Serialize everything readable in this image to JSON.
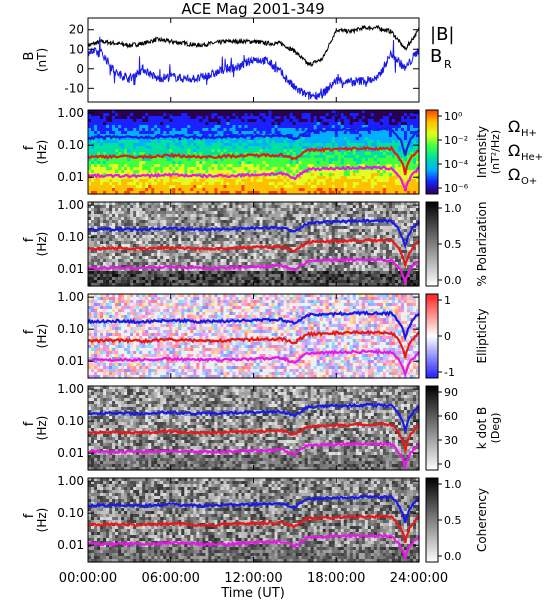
{
  "chart_data": [
    {
      "type": "line",
      "title": "ACE Mag 2001-349",
      "ylabel": "B",
      "yunit": "(nT)",
      "ylim": [
        -17,
        26
      ],
      "yticks": [
        "20",
        "10",
        "0",
        "-10"
      ],
      "legend": [
        {
          "label": "|B|",
          "color": "#000000"
        },
        {
          "label": "B",
          "sub": "R",
          "color": "#1a1ae6"
        }
      ],
      "x": [
        "00:00",
        "01:00",
        "02:00",
        "03:00",
        "04:00",
        "05:00",
        "06:00",
        "07:00",
        "08:00",
        "09:00",
        "10:00",
        "11:00",
        "12:00",
        "13:00",
        "14:00",
        "15:00",
        "16:00",
        "17:00",
        "18:00",
        "19:00",
        "20:00",
        "21:00",
        "22:00",
        "23:00",
        "24:00"
      ],
      "series": [
        {
          "name": "|B|",
          "values": [
            12,
            14,
            13,
            12,
            13,
            15,
            14,
            13,
            12,
            13,
            14,
            14,
            14,
            13,
            13,
            9,
            2,
            5,
            20,
            19,
            21,
            21,
            19,
            10,
            20
          ]
        },
        {
          "name": "B_R",
          "values": [
            9,
            8,
            -2,
            -5,
            0,
            -5,
            -4,
            -5,
            -5,
            -3,
            0,
            1,
            5,
            4,
            -2,
            -10,
            -14,
            -13,
            -6,
            -7,
            -6,
            -5,
            8,
            0,
            10
          ]
        }
      ]
    },
    {
      "type": "heatmap",
      "ylabel": "f",
      "yunit": "(Hz)",
      "yscale": "log",
      "yticks": [
        "1.00",
        "0.10",
        "0.01"
      ],
      "colorbar": {
        "label": "Intensity",
        "unit": "(nT²/Hz)",
        "ticks": [
          "10⁰",
          "10⁻²",
          "10⁻⁴",
          "10⁻⁶"
        ],
        "colors": [
          "#2a0050",
          "#1a20ff",
          "#00b0ff",
          "#00e0a0",
          "#40ff40",
          "#e0ff20",
          "#ffc000",
          "#ff4000",
          "#ffffff"
        ]
      },
      "lines_legend": [
        {
          "label": "Ω",
          "sub": "H+",
          "color": "#1a1ae6"
        },
        {
          "label": "Ω",
          "sub": "He+",
          "color": "#e61a1a"
        },
        {
          "label": "Ω",
          "sub": "O+",
          "color": "#e61ae6"
        }
      ]
    },
    {
      "type": "heatmap",
      "ylabel": "f",
      "yunit": "(Hz)",
      "yscale": "log",
      "yticks": [
        "1.00",
        "0.10",
        "0.01"
      ],
      "colorbar": {
        "label": "% Polarization",
        "unit": "",
        "ticks": [
          "1.0",
          "0.5",
          "0.0"
        ],
        "colors": [
          "#ffffff",
          "#000000"
        ]
      }
    },
    {
      "type": "heatmap",
      "ylabel": "f",
      "yunit": "(Hz)",
      "yscale": "log",
      "yticks": [
        "1.00",
        "0.10",
        "0.01"
      ],
      "colorbar": {
        "label": "Ellipticity",
        "unit": "",
        "ticks": [
          "1",
          "0",
          "-1"
        ],
        "colors": [
          "#2020ff",
          "#ffffff",
          "#ff2020"
        ]
      }
    },
    {
      "type": "heatmap",
      "ylabel": "f",
      "yunit": "(Hz)",
      "yscale": "log",
      "yticks": [
        "1.00",
        "0.10",
        "0.01"
      ],
      "colorbar": {
        "label": "k dot B",
        "unit": "(Deg)",
        "ticks": [
          "90",
          "60",
          "30",
          "0"
        ],
        "colors": [
          "#ffffff",
          "#000000"
        ]
      }
    },
    {
      "type": "heatmap",
      "ylabel": "f",
      "yunit": "(Hz)",
      "yscale": "log",
      "yticks": [
        "1.00",
        "0.10",
        "0.01"
      ],
      "colorbar": {
        "label": "Coherency",
        "unit": "",
        "ticks": [
          "1.0",
          "0.5",
          "0.0"
        ],
        "colors": [
          "#ffffff",
          "#000000"
        ]
      }
    }
  ],
  "gyrofrequency_lines": {
    "x": [
      "00:00",
      "02:00",
      "04:00",
      "06:00",
      "08:00",
      "10:00",
      "12:00",
      "14:00",
      "15:00",
      "16:00",
      "18:00",
      "20:00",
      "22:00",
      "23:00",
      "24:00"
    ],
    "H+": [
      0.17,
      0.18,
      0.17,
      0.19,
      0.17,
      0.18,
      0.19,
      0.2,
      0.15,
      0.28,
      0.3,
      0.32,
      0.31,
      0.05,
      0.3
    ],
    "He+": [
      0.043,
      0.045,
      0.043,
      0.048,
      0.043,
      0.045,
      0.048,
      0.05,
      0.038,
      0.07,
      0.075,
      0.08,
      0.078,
      0.013,
      0.075
    ],
    "O+": [
      0.011,
      0.011,
      0.011,
      0.012,
      0.011,
      0.011,
      0.012,
      0.013,
      0.009,
      0.018,
      0.019,
      0.02,
      0.019,
      0.004,
      0.019
    ],
    "colors": {
      "H+": "#1a1ae6",
      "He+": "#e61a1a",
      "O+": "#e61ae6"
    }
  },
  "xaxis": {
    "ticks": [
      "00:00:00",
      "06:00:00",
      "12:00:00",
      "18:00:00",
      "24:00:00"
    ],
    "label": "Time (UT)"
  }
}
